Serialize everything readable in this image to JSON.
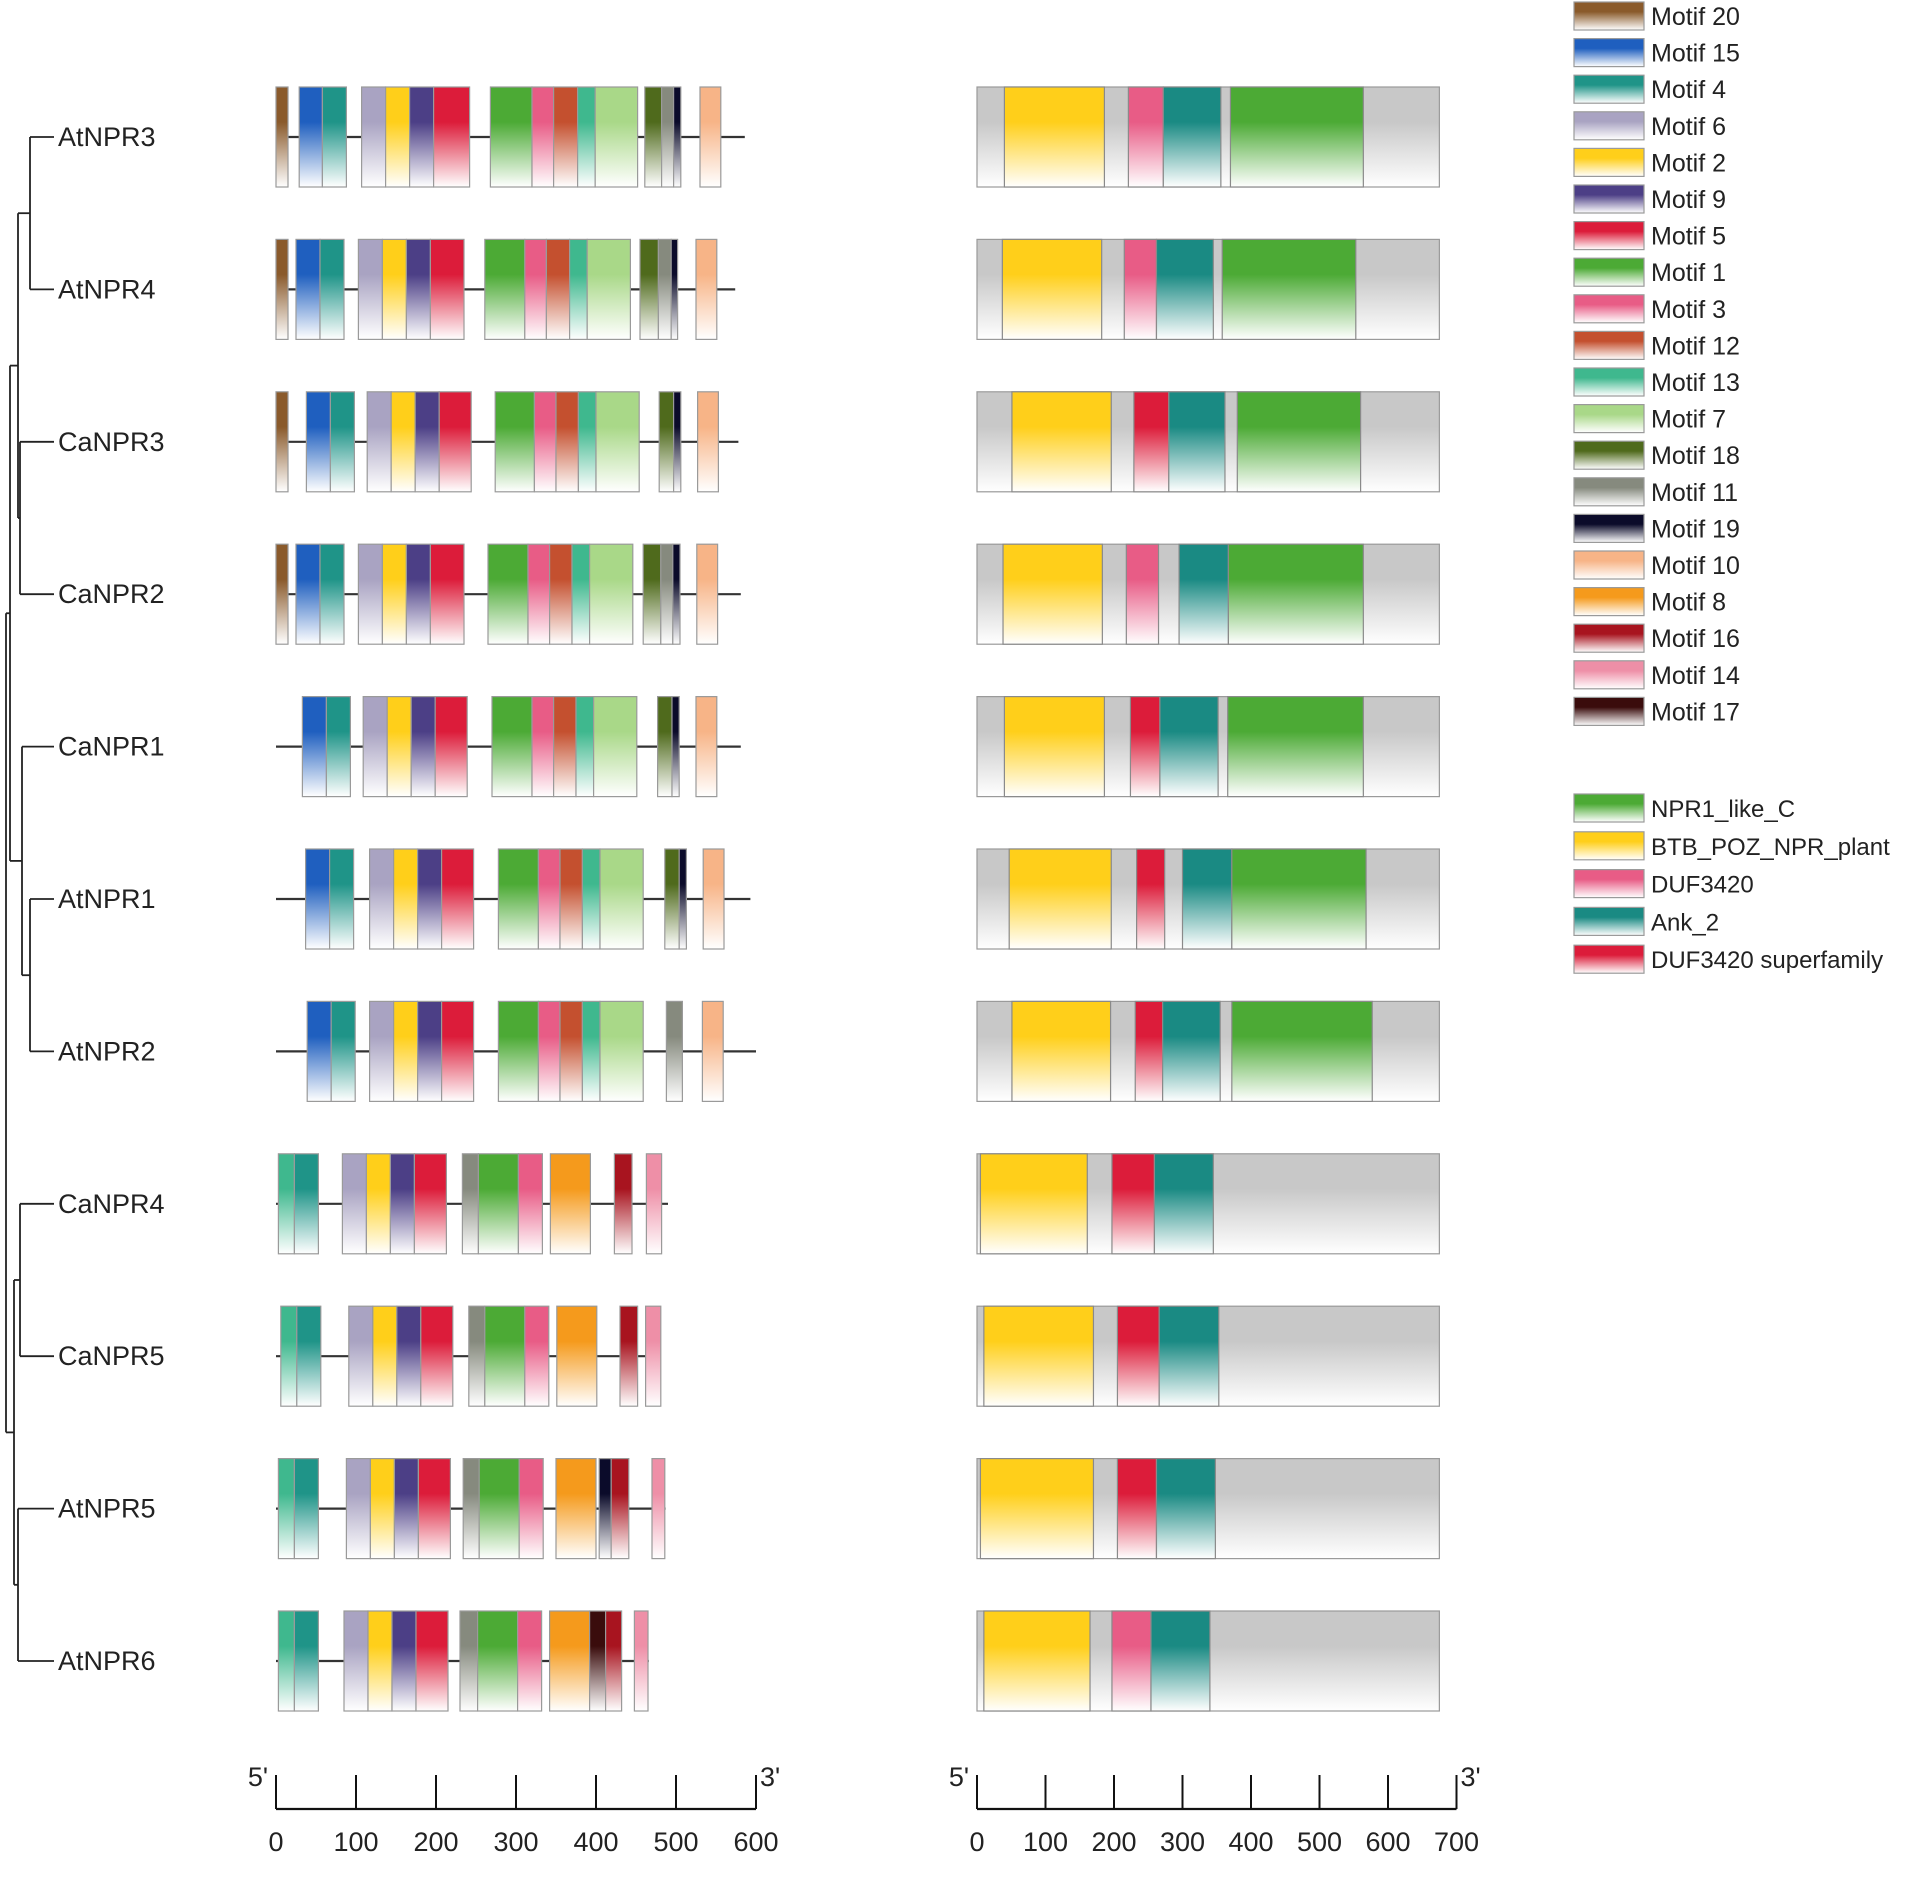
{
  "genes": [
    "AtNPR3",
    "AtNPR4",
    "CaNPR3",
    "CaNPR2",
    "CaNPR1",
    "AtNPR1",
    "AtNPR2",
    "CaNPR4",
    "CaNPR5",
    "AtNPR5",
    "AtNPR6"
  ],
  "protein_lengths": [
    586,
    574,
    578,
    581,
    581,
    593,
    600,
    490,
    480,
    487,
    466
  ],
  "motif_legend": [
    {
      "id": "m20",
      "label": "Motif 20",
      "color": "#8a5a2b"
    },
    {
      "id": "m15",
      "label": "Motif 15",
      "color": "#1f5fbf"
    },
    {
      "id": "m4",
      "label": "Motif 4",
      "color": "#1f9488"
    },
    {
      "id": "m6",
      "label": "Motif 6",
      "color": "#a9a3c2"
    },
    {
      "id": "m2",
      "label": "Motif 2",
      "color": "#ffcf1a"
    },
    {
      "id": "m9",
      "label": "Motif 9",
      "color": "#4c3f86"
    },
    {
      "id": "m5",
      "label": "Motif 5",
      "color": "#dc1c3a"
    },
    {
      "id": "m1",
      "label": "Motif 1",
      "color": "#4caa35"
    },
    {
      "id": "m3",
      "label": "Motif 3",
      "color": "#e85c86"
    },
    {
      "id": "m12",
      "label": "Motif 12",
      "color": "#c4502f"
    },
    {
      "id": "m13",
      "label": "Motif 13",
      "color": "#3fb88e"
    },
    {
      "id": "m7",
      "label": "Motif 7",
      "color": "#a9d888"
    },
    {
      "id": "m18",
      "label": "Motif 18",
      "color": "#4f6a1c"
    },
    {
      "id": "m11",
      "label": "Motif 11",
      "color": "#868a7e"
    },
    {
      "id": "m19",
      "label": "Motif 19",
      "color": "#0b0b2a"
    },
    {
      "id": "m10",
      "label": "Motif 10",
      "color": "#f7b487"
    },
    {
      "id": "m8",
      "label": "Motif 8",
      "color": "#f59a1c"
    },
    {
      "id": "m16",
      "label": "Motif 16",
      "color": "#a8141f"
    },
    {
      "id": "m14",
      "label": "Motif 14",
      "color": "#ee8fa7"
    },
    {
      "id": "m17",
      "label": "Motif 17",
      "color": "#3a0c0c"
    }
  ],
  "domain_legend": [
    {
      "id": "d_npr1",
      "label": "NPR1_like_C",
      "color": "#4caa35"
    },
    {
      "id": "d_btb",
      "label": "BTB_POZ_NPR_plant",
      "color": "#ffcf1a"
    },
    {
      "id": "d_duf",
      "label": "DUF3420",
      "color": "#e85c86"
    },
    {
      "id": "d_ank",
      "label": "Ank_2",
      "color": "#1a8a83"
    },
    {
      "id": "d_dufs",
      "label": "DUF3420 superfamily",
      "color": "#dc1c3a"
    }
  ],
  "motifs": [
    [
      [
        "m20",
        0,
        15
      ],
      [
        "m15",
        29,
        58
      ],
      [
        "m4",
        58,
        88
      ],
      [
        "m6",
        107,
        137
      ],
      [
        "m2",
        137,
        167
      ],
      [
        "m9",
        167,
        197
      ],
      [
        "m5",
        197,
        242
      ],
      [
        "m1",
        268,
        320
      ],
      [
        "m3",
        320,
        347
      ],
      [
        "m12",
        347,
        377
      ],
      [
        "m13",
        377,
        399
      ],
      [
        "m7",
        399,
        452
      ],
      [
        "m18",
        461,
        482
      ],
      [
        "m11",
        482,
        497
      ],
      [
        "m19",
        497,
        506
      ],
      [
        "m10",
        530,
        556
      ]
    ],
    [
      [
        "m20",
        0,
        15
      ],
      [
        "m15",
        25,
        55
      ],
      [
        "m4",
        55,
        85
      ],
      [
        "m6",
        103,
        133
      ],
      [
        "m2",
        133,
        163
      ],
      [
        "m9",
        163,
        193
      ],
      [
        "m5",
        193,
        235
      ],
      [
        "m1",
        261,
        311
      ],
      [
        "m3",
        311,
        338
      ],
      [
        "m12",
        338,
        367
      ],
      [
        "m13",
        367,
        389
      ],
      [
        "m7",
        389,
        443
      ],
      [
        "m18",
        455,
        478
      ],
      [
        "m11",
        478,
        494
      ],
      [
        "m19",
        494,
        502
      ],
      [
        "m10",
        525,
        551
      ]
    ],
    [
      [
        "m20",
        0,
        15
      ],
      [
        "m15",
        38,
        68
      ],
      [
        "m4",
        68,
        98
      ],
      [
        "m6",
        114,
        144
      ],
      [
        "m2",
        144,
        174
      ],
      [
        "m9",
        174,
        204
      ],
      [
        "m5",
        204,
        244
      ],
      [
        "m1",
        274,
        323
      ],
      [
        "m3",
        323,
        350
      ],
      [
        "m12",
        350,
        378
      ],
      [
        "m13",
        378,
        400
      ],
      [
        "m7",
        400,
        454
      ],
      [
        "m18",
        479,
        497
      ],
      [
        "m19",
        497,
        506
      ],
      [
        "m10",
        527,
        553
      ]
    ],
    [
      [
        "m20",
        0,
        15
      ],
      [
        "m15",
        25,
        55
      ],
      [
        "m4",
        55,
        85
      ],
      [
        "m6",
        103,
        133
      ],
      [
        "m2",
        133,
        163
      ],
      [
        "m9",
        163,
        193
      ],
      [
        "m5",
        193,
        235
      ],
      [
        "m1",
        265,
        315
      ],
      [
        "m3",
        315,
        342
      ],
      [
        "m12",
        342,
        370
      ],
      [
        "m13",
        370,
        392
      ],
      [
        "m7",
        392,
        446
      ],
      [
        "m18",
        459,
        481
      ],
      [
        "m11",
        481,
        496
      ],
      [
        "m19",
        496,
        505
      ],
      [
        "m10",
        526,
        552
      ]
    ],
    [
      [
        "m15",
        33,
        63
      ],
      [
        "m4",
        63,
        93
      ],
      [
        "m6",
        109,
        139
      ],
      [
        "m2",
        139,
        169
      ],
      [
        "m9",
        169,
        199
      ],
      [
        "m5",
        199,
        239
      ],
      [
        "m1",
        270,
        320
      ],
      [
        "m3",
        320,
        347
      ],
      [
        "m12",
        347,
        375
      ],
      [
        "m13",
        375,
        397
      ],
      [
        "m7",
        397,
        451
      ],
      [
        "m18",
        477,
        495
      ],
      [
        "m19",
        495,
        504
      ],
      [
        "m10",
        525,
        551
      ]
    ],
    [
      [
        "m15",
        37,
        67
      ],
      [
        "m4",
        67,
        97
      ],
      [
        "m6",
        117,
        147
      ],
      [
        "m2",
        147,
        177
      ],
      [
        "m9",
        177,
        207
      ],
      [
        "m5",
        207,
        247
      ],
      [
        "m1",
        278,
        328
      ],
      [
        "m3",
        328,
        355
      ],
      [
        "m12",
        355,
        383
      ],
      [
        "m13",
        383,
        405
      ],
      [
        "m7",
        405,
        459
      ],
      [
        "m18",
        486,
        504
      ],
      [
        "m19",
        504,
        513
      ],
      [
        "m10",
        534,
        560
      ]
    ],
    [
      [
        "m15",
        39,
        69
      ],
      [
        "m4",
        69,
        99
      ],
      [
        "m6",
        117,
        147
      ],
      [
        "m2",
        147,
        177
      ],
      [
        "m9",
        177,
        207
      ],
      [
        "m5",
        207,
        247
      ],
      [
        "m1",
        278,
        328
      ],
      [
        "m3",
        328,
        355
      ],
      [
        "m12",
        355,
        383
      ],
      [
        "m13",
        383,
        405
      ],
      [
        "m7",
        405,
        459
      ],
      [
        "m11",
        488,
        508
      ],
      [
        "m10",
        533,
        559
      ]
    ],
    [
      [
        "m13",
        3,
        23
      ],
      [
        "m4",
        23,
        53
      ],
      [
        "m6",
        83,
        113
      ],
      [
        "m2",
        113,
        143
      ],
      [
        "m9",
        143,
        173
      ],
      [
        "m5",
        173,
        213
      ],
      [
        "m11",
        233,
        253
      ],
      [
        "m1",
        253,
        303
      ],
      [
        "m3",
        303,
        333
      ],
      [
        "m8",
        343,
        393
      ],
      [
        "m16",
        423,
        445
      ],
      [
        "m14",
        463,
        482
      ]
    ],
    [
      [
        "m13",
        6,
        26
      ],
      [
        "m4",
        26,
        56
      ],
      [
        "m6",
        91,
        121
      ],
      [
        "m2",
        121,
        151
      ],
      [
        "m9",
        151,
        181
      ],
      [
        "m5",
        181,
        221
      ],
      [
        "m11",
        241,
        261
      ],
      [
        "m1",
        261,
        311
      ],
      [
        "m3",
        311,
        341
      ],
      [
        "m8",
        351,
        401
      ],
      [
        "m16",
        430,
        452
      ],
      [
        "m14",
        462,
        481
      ]
    ],
    [
      [
        "m13",
        3,
        23
      ],
      [
        "m4",
        23,
        53
      ],
      [
        "m6",
        88,
        118
      ],
      [
        "m2",
        118,
        148
      ],
      [
        "m9",
        148,
        178
      ],
      [
        "m5",
        178,
        218
      ],
      [
        "m11",
        234,
        254
      ],
      [
        "m1",
        254,
        304
      ],
      [
        "m3",
        304,
        334
      ],
      [
        "m8",
        350,
        400
      ],
      [
        "m19",
        404,
        419
      ],
      [
        "m16",
        419,
        441
      ],
      [
        "m14",
        470,
        486
      ]
    ],
    [
      [
        "m13",
        3,
        23
      ],
      [
        "m4",
        23,
        53
      ],
      [
        "m6",
        85,
        115
      ],
      [
        "m2",
        115,
        145
      ],
      [
        "m9",
        145,
        175
      ],
      [
        "m5",
        175,
        215
      ],
      [
        "m11",
        230,
        252
      ],
      [
        "m1",
        252,
        302
      ],
      [
        "m3",
        302,
        332
      ],
      [
        "m8",
        342,
        392
      ],
      [
        "m17",
        392,
        412
      ],
      [
        "m16",
        412,
        432
      ],
      [
        "m14",
        448,
        465
      ]
    ]
  ],
  "domains": [
    [
      [
        "d_btb",
        40,
        186
      ],
      [
        "d_duf",
        221,
        272
      ],
      [
        "d_ank",
        272,
        356
      ],
      [
        "d_npr1",
        370,
        564
      ]
    ],
    [
      [
        "d_btb",
        37,
        182
      ],
      [
        "d_duf",
        215,
        262
      ],
      [
        "d_ank",
        262,
        345
      ],
      [
        "d_npr1",
        358,
        553
      ]
    ],
    [
      [
        "d_btb",
        51,
        196
      ],
      [
        "d_dufs",
        229,
        280
      ],
      [
        "d_ank",
        280,
        362
      ],
      [
        "d_npr1",
        380,
        560
      ]
    ],
    [
      [
        "d_btb",
        38,
        183
      ],
      [
        "d_duf",
        218,
        265
      ],
      [
        "d_ank",
        295,
        367
      ],
      [
        "d_npr1",
        367,
        564
      ]
    ],
    [
      [
        "d_btb",
        40,
        186
      ],
      [
        "d_dufs",
        224,
        267
      ],
      [
        "d_ank",
        267,
        352
      ],
      [
        "d_npr1",
        366,
        564
      ]
    ],
    [
      [
        "d_btb",
        47,
        196
      ],
      [
        "d_dufs",
        233,
        274
      ],
      [
        "d_ank",
        300,
        372
      ],
      [
        "d_npr1",
        372,
        568
      ]
    ],
    [
      [
        "d_btb",
        51,
        195
      ],
      [
        "d_dufs",
        231,
        271
      ],
      [
        "d_ank",
        271,
        355
      ],
      [
        "d_npr1",
        372,
        577
      ]
    ],
    [
      [
        "d_btb",
        5,
        161
      ],
      [
        "d_dufs",
        197,
        259
      ],
      [
        "d_ank",
        259,
        345
      ]
    ],
    [
      [
        "d_btb",
        10,
        170
      ],
      [
        "d_dufs",
        205,
        266
      ],
      [
        "d_ank",
        266,
        353
      ]
    ],
    [
      [
        "d_btb",
        5,
        170
      ],
      [
        "d_dufs",
        205,
        262
      ],
      [
        "d_ank",
        262,
        348
      ]
    ],
    [
      [
        "d_btb",
        10,
        165
      ],
      [
        "d_duf",
        197,
        254
      ],
      [
        "d_ank",
        254,
        340
      ]
    ]
  ],
  "domain_map_length": 675,
  "motif_scale": {
    "start_label": "5'",
    "end_label": "3'",
    "ticks": [
      0,
      100,
      200,
      300,
      400,
      500,
      600
    ]
  },
  "domain_scale": {
    "start_label": "5'",
    "end_label": "3'",
    "ticks": [
      0,
      100,
      200,
      300,
      400,
      500,
      600,
      700
    ]
  },
  "tree_nodes": {
    "id": "root",
    "children": [
      {
        "id": "n_upper",
        "children": [
          {
            "id": "n_npr34",
            "children": [
              {
                "id": "n_at34",
                "children": [
                  {
                    "leaf": "AtNPR3"
                  },
                  {
                    "leaf": "AtNPR4"
                  }
                ]
              },
              {
                "id": "n_ca23",
                "children": [
                  {
                    "leaf": "CaNPR3"
                  },
                  {
                    "leaf": "CaNPR2"
                  }
                ]
              }
            ]
          },
          {
            "id": "n_npr12",
            "children": [
              {
                "leaf": "CaNPR1"
              },
              {
                "id": "n_at12",
                "children": [
                  {
                    "leaf": "AtNPR1"
                  },
                  {
                    "leaf": "AtNPR2"
                  }
                ]
              }
            ]
          }
        ]
      },
      {
        "id": "n_lower",
        "children": [
          {
            "id": "n_ca45",
            "children": [
              {
                "leaf": "CaNPR4"
              },
              {
                "leaf": "CaNPR5"
              }
            ]
          },
          {
            "id": "n_at56",
            "children": [
              {
                "leaf": "AtNPR5"
              },
              {
                "leaf": "AtNPR6"
              }
            ]
          }
        ]
      }
    ]
  }
}
